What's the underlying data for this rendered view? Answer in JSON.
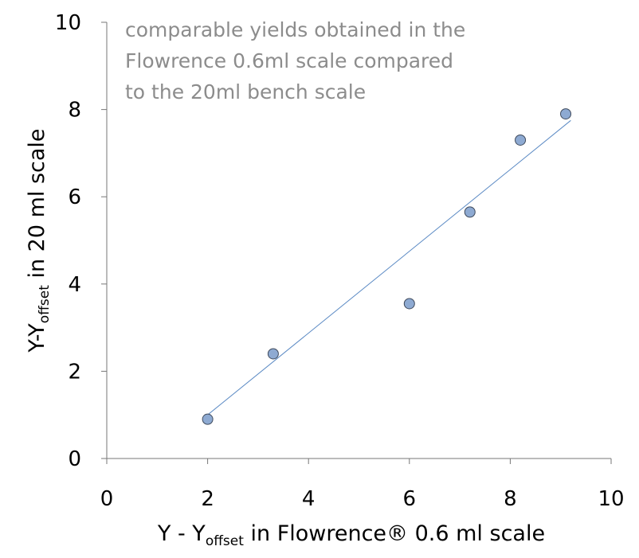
{
  "chart_data": {
    "type": "scatter",
    "title": "",
    "annotation": {
      "lines": [
        "comparable yields obtained in the",
        "Flowrence 0.6ml scale compared",
        "to the 20ml bench scale"
      ],
      "color": "#8c8c8c"
    },
    "xlabel": {
      "prefix": "Y - Y",
      "subscript": "offset",
      "suffix": " in Flowrence®  0.6 ml scale"
    },
    "ylabel": {
      "prefix": "Y-Y",
      "subscript": "offset",
      "suffix": " in 20 ml scale"
    },
    "xlim": [
      0,
      10
    ],
    "ylim": [
      0,
      10
    ],
    "xticks": [
      "0",
      "2",
      "4",
      "6",
      "8",
      "10"
    ],
    "yticks": [
      "0",
      "2",
      "4",
      "6",
      "8",
      "10"
    ],
    "grid": false,
    "series": [
      {
        "x": [
          2.0,
          3.3,
          6.0,
          7.2,
          8.2,
          9.1
        ],
        "y": [
          0.9,
          2.4,
          3.55,
          5.65,
          7.3,
          7.9
        ],
        "marker_color": "#8eaad2",
        "marker_edge": "#3f4a5c"
      }
    ],
    "trendline": {
      "x": [
        2.0,
        9.2
      ],
      "y": [
        1.0,
        7.75
      ],
      "color": "#5b8ac4"
    }
  }
}
